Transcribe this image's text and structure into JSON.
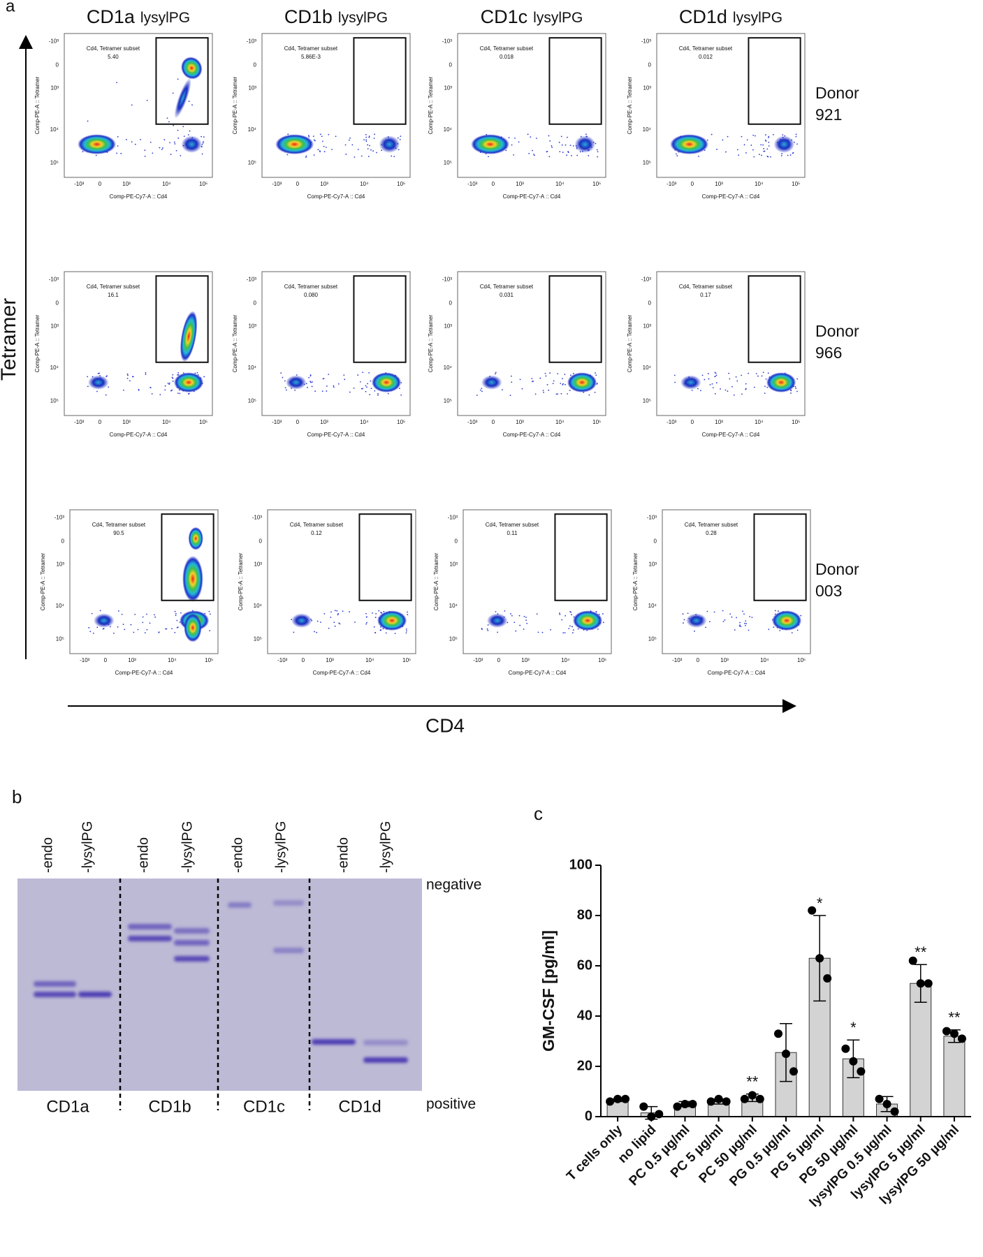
{
  "panel_a": {
    "label": "a",
    "columns": [
      {
        "name": "CD1a",
        "lipid": "lysylPG"
      },
      {
        "name": "CD1b",
        "lipid": "lysylPG"
      },
      {
        "name": "CD1c",
        "lipid": "lysylPG"
      },
      {
        "name": "CD1d",
        "lipid": "lysylPG"
      }
    ],
    "donors": [
      {
        "word": "Donor",
        "id": "921"
      },
      {
        "word": "Donor",
        "id": "966"
      },
      {
        "word": "Donor",
        "id": "003"
      }
    ],
    "axis_y": "Tetramer",
    "axis_x": "CD4",
    "plot_y_label": "Comp-PE-A :: Tetramer",
    "plot_x_label": "Comp-PE-Cy7-A :: Cd4",
    "gate_name": "Cd4, Tetramer subset",
    "ticks": [
      "-10³",
      "0",
      "10³",
      "10⁴",
      "10⁵"
    ],
    "gate_values": [
      [
        "5.40",
        "5.86E-3",
        "0.018",
        "0.012"
      ],
      [
        "16.1",
        "0.080",
        "0.031",
        "0.17"
      ],
      [
        "90.5",
        "0.12",
        "0.11",
        "0.28"
      ]
    ]
  },
  "panel_b": {
    "label": "b",
    "lanes": [
      "-endo",
      "-lysylPG"
    ],
    "molecules": [
      "CD1a",
      "CD1b",
      "CD1c",
      "CD1d"
    ],
    "top_label": "negative",
    "bottom_label": "positive"
  },
  "chart_data": {
    "type": "bar",
    "label": "c",
    "y_label": "GM-CSF [pg/ml]",
    "categories": [
      "T cells only",
      "no lipid",
      "PC 0.5 µg/ml",
      "PC 5 µg/ml",
      "PC 50 µg/ml",
      "PG 0.5 µg/ml",
      "PG 5 µg/ml",
      "PG 50 µg/ml",
      "lysylPG 0.5 µg/ml",
      "lysylPG 5 µg/ml",
      "lysylPG 50 µg/ml"
    ],
    "values": [
      6.5,
      1.5,
      5,
      6,
      7.5,
      25.5,
      63,
      23,
      5,
      53,
      32
    ],
    "errors": [
      0.5,
      2.5,
      1,
      1,
      1.5,
      11.5,
      17,
      7.5,
      3,
      7.5,
      2.5
    ],
    "points": [
      [
        6,
        7,
        7
      ],
      [
        4,
        0,
        1
      ],
      [
        4,
        5,
        5
      ],
      [
        6,
        7,
        6
      ],
      [
        7,
        8.5,
        7
      ],
      [
        33,
        25,
        18
      ],
      [
        82,
        63,
        55
      ],
      [
        27,
        22,
        18
      ],
      [
        7,
        5,
        2
      ],
      [
        62,
        53,
        53
      ],
      [
        34,
        33,
        31
      ]
    ],
    "annotations": [
      null,
      null,
      null,
      null,
      "**",
      null,
      "*",
      "*",
      null,
      "**",
      "**"
    ],
    "color": "#d3d3d3",
    "ylim": [
      0,
      100
    ],
    "yticks": [
      0,
      20,
      40,
      60,
      80,
      100
    ]
  }
}
